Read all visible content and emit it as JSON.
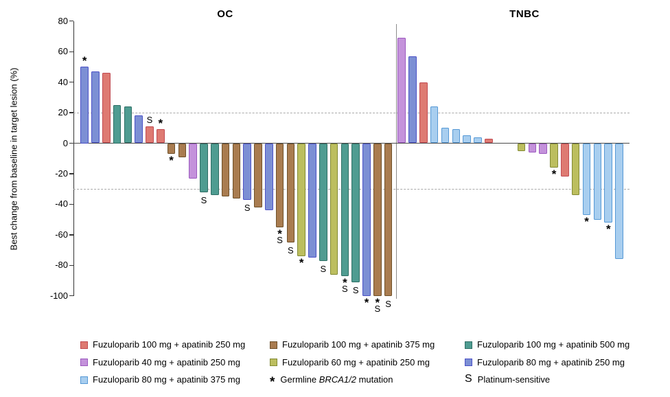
{
  "chart_data": {
    "type": "bar",
    "subtype": "waterfall",
    "ylabel": "Best change from baseline in target lesion (%)",
    "ylim": [
      -100,
      80
    ],
    "yticks": [
      80,
      60,
      40,
      20,
      0,
      -20,
      -40,
      -60,
      -80,
      -100
    ],
    "reference_lines": [
      20,
      -30
    ],
    "grid": "horizontal dashed reference lines only",
    "legend_position": "bottom",
    "groups": {
      "f100_a250": {
        "label": "Fuzuloparib 100 mg + apatinib 250 mg",
        "fill": "#DE7A72",
        "border": "#C14B52"
      },
      "f40_a250": {
        "label": "Fuzuloparib 40 mg + apatinib 250 mg",
        "fill": "#C492DB",
        "border": "#9C59BF"
      },
      "f80_a375": {
        "label": "Fuzuloparib 80 mg + apatinib 375 mg",
        "fill": "#A8CEEF",
        "border": "#5598D5"
      },
      "f100_a375": {
        "label": "Fuzuloparib 100 mg + apatinib 375 mg",
        "fill": "#A97C50",
        "border": "#6E5029"
      },
      "f60_a250": {
        "label": "Fuzuloparib 60 mg + apatinib 250 mg",
        "fill": "#BCBE5F",
        "border": "#828A33"
      },
      "f100_a500": {
        "label": "Fuzuloparib 100 mg + apatinib 500 mg",
        "fill": "#4F9C91",
        "border": "#2E6E64"
      },
      "f80_a250": {
        "label": "Fuzuloparib 80 mg + apatinib 250 mg",
        "fill": "#7C8FD4",
        "border": "#4B51C7"
      }
    },
    "markers": {
      "star": "Germline BRCA1/2 mutation",
      "S": "Platinum-sensitive"
    },
    "panels": [
      {
        "title": "OC",
        "bars": [
          {
            "value": 50,
            "group": "f80_a250",
            "mark": "*"
          },
          {
            "value": 47,
            "group": "f80_a250"
          },
          {
            "value": 46,
            "group": "f100_a250"
          },
          {
            "value": 25,
            "group": "f100_a500"
          },
          {
            "value": 24,
            "group": "f100_a500"
          },
          {
            "value": 18,
            "group": "f80_a250"
          },
          {
            "value": 11,
            "group": "f100_a250",
            "mark": "S"
          },
          {
            "value": 9,
            "group": "f100_a250",
            "mark": "*"
          },
          {
            "value": -7,
            "group": "f100_a375",
            "mark": "*"
          },
          {
            "value": -9,
            "group": "f100_a375"
          },
          {
            "value": -23,
            "group": "f40_a250"
          },
          {
            "value": -32,
            "group": "f100_a500",
            "mark": "S"
          },
          {
            "value": -34,
            "group": "f100_a500"
          },
          {
            "value": -35,
            "group": "f100_a375"
          },
          {
            "value": -36,
            "group": "f100_a375"
          },
          {
            "value": -37,
            "group": "f80_a250",
            "mark": "S"
          },
          {
            "value": -42,
            "group": "f100_a375"
          },
          {
            "value": -44,
            "group": "f80_a250"
          },
          {
            "value": -55,
            "group": "f100_a375",
            "mark": "*S"
          },
          {
            "value": -65,
            "group": "f100_a375",
            "mark": "S"
          },
          {
            "value": -74,
            "group": "f60_a250",
            "mark": "*"
          },
          {
            "value": -75,
            "group": "f80_a250"
          },
          {
            "value": -77,
            "group": "f100_a500",
            "mark": "S"
          },
          {
            "value": -86,
            "group": "f60_a250"
          },
          {
            "value": -87,
            "group": "f100_a500",
            "mark": "*S"
          },
          {
            "value": -91,
            "group": "f100_a500",
            "mark": "S"
          },
          {
            "value": -100,
            "group": "f80_a250",
            "mark": "*"
          },
          {
            "value": -100,
            "group": "f100_a375",
            "mark": "*S"
          },
          {
            "value": -100,
            "group": "f100_a375",
            "mark": "S"
          }
        ]
      },
      {
        "title": "TNBC",
        "bars": [
          {
            "value": 69,
            "group": "f40_a250"
          },
          {
            "value": 57,
            "group": "f80_a250"
          },
          {
            "value": 40,
            "group": "f100_a250"
          },
          {
            "value": 24,
            "group": "f80_a375"
          },
          {
            "value": 10,
            "group": "f80_a375"
          },
          {
            "value": 9,
            "group": "f80_a375"
          },
          {
            "value": 5,
            "group": "f80_a375"
          },
          {
            "value": 4,
            "group": "f80_a375"
          },
          {
            "value": 3,
            "group": "f100_a250"
          },
          {
            "value": 0,
            "group": null
          },
          {
            "value": 0,
            "group": null
          },
          {
            "value": -5,
            "group": "f60_a250"
          },
          {
            "value": -6,
            "group": "f40_a250"
          },
          {
            "value": -7,
            "group": "f40_a250"
          },
          {
            "value": -16,
            "group": "f60_a250",
            "mark": "*"
          },
          {
            "value": -22,
            "group": "f100_a250"
          },
          {
            "value": -34,
            "group": "f60_a250"
          },
          {
            "value": -47,
            "group": "f80_a375",
            "mark": "*"
          },
          {
            "value": -50,
            "group": "f80_a375"
          },
          {
            "value": -52,
            "group": "f80_a375",
            "mark": "*"
          },
          {
            "value": -76,
            "group": "f80_a375"
          }
        ]
      }
    ]
  },
  "legend": {
    "columns": [
      {
        "items": [
          {
            "swatch": "f100_a250"
          },
          {
            "swatch": "f40_a250"
          },
          {
            "swatch": "f80_a375"
          }
        ]
      },
      {
        "items": [
          {
            "swatch": "f100_a375"
          },
          {
            "swatch": "f60_a250"
          },
          {
            "marker": "*",
            "text_before": "Germline ",
            "italic": "BRCA1/2",
            "text_after": " mutation"
          }
        ]
      },
      {
        "items": [
          {
            "swatch": "f100_a500"
          },
          {
            "swatch": "f80_a250"
          },
          {
            "marker": "S",
            "text": "Platinum-sensitive"
          }
        ]
      }
    ]
  }
}
